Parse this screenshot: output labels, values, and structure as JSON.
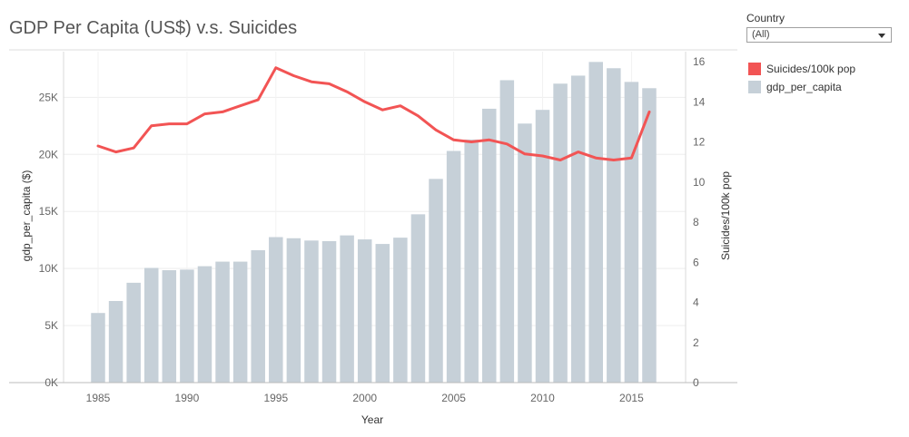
{
  "title": "GDP Per Capita (US$) v.s. Suicides",
  "filter": {
    "label": "Country",
    "value": "(All)"
  },
  "legend": [
    {
      "label": "Suicides/100k pop",
      "color": "#f25454"
    },
    {
      "label": "gdp_per_capita",
      "color": "#c6d0d8"
    }
  ],
  "chart_data": {
    "type": "bar",
    "xlabel": "Year",
    "ylabel_left": "gdp_per_capita ($)",
    "ylabel_right": "Suicides/100k pop",
    "x": [
      1985,
      1986,
      1987,
      1988,
      1989,
      1990,
      1991,
      1992,
      1993,
      1994,
      1995,
      1996,
      1997,
      1998,
      1999,
      2000,
      2001,
      2002,
      2003,
      2004,
      2005,
      2006,
      2007,
      2008,
      2009,
      2010,
      2011,
      2012,
      2013,
      2014,
      2015,
      2016
    ],
    "x_ticks": [
      "1985",
      "1990",
      "1995",
      "2000",
      "2005",
      "2010",
      "2015"
    ],
    "y_left_ticks": [
      "0K",
      "5K",
      "10K",
      "15K",
      "20K",
      "25K"
    ],
    "y_right_ticks": [
      "0",
      "2",
      "4",
      "6",
      "8",
      "10",
      "12",
      "14",
      "16"
    ],
    "ylim_left": [
      0,
      29000
    ],
    "ylim_right": [
      0,
      16.5
    ],
    "series": [
      {
        "name": "gdp_per_capita",
        "type": "bar",
        "color": "#c6d0d8",
        "values": [
          6100,
          7150,
          8750,
          10050,
          9850,
          9900,
          10200,
          10600,
          10600,
          11600,
          12750,
          12650,
          12450,
          12400,
          12900,
          12550,
          12150,
          12700,
          14750,
          17850,
          20300,
          21300,
          24000,
          26500,
          22700,
          23900,
          26200,
          26900,
          28100,
          27550,
          26350,
          25800
        ]
      },
      {
        "name": "Suicides/100k pop",
        "type": "line",
        "color": "#f25454",
        "values": [
          11.8,
          11.5,
          11.7,
          12.8,
          12.9,
          12.9,
          13.4,
          13.5,
          13.8,
          14.1,
          15.7,
          15.3,
          15.0,
          14.9,
          14.5,
          14.0,
          13.6,
          13.8,
          13.3,
          12.6,
          12.1,
          12.0,
          12.1,
          11.9,
          11.4,
          11.3,
          11.1,
          11.5,
          11.2,
          11.1,
          11.2,
          13.5
        ]
      }
    ],
    "grid": true
  }
}
